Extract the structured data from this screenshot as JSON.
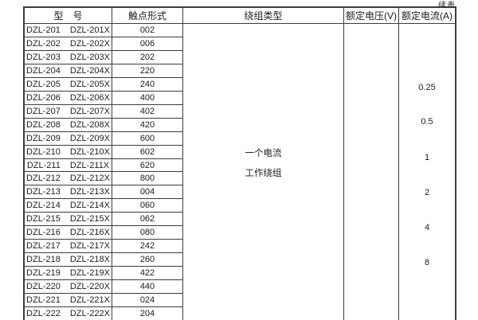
{
  "note": "续表",
  "table": {
    "headers": [
      "型　号",
      "触点形式",
      "绕组类型",
      "额定电压(V)",
      "额定电流(A)"
    ],
    "rows": [
      {
        "model": "DZL-201",
        "model_x": "DZL-201X",
        "contact_form": "002"
      },
      {
        "model": "DZL-202",
        "model_x": "DZL-202X",
        "contact_form": "006"
      },
      {
        "model": "DZL-203",
        "model_x": "DZL-203X",
        "contact_form": "202"
      },
      {
        "model": "DZL-204",
        "model_x": "DZL-204X",
        "contact_form": "220"
      },
      {
        "model": "DZL-205",
        "model_x": "DZL-205X",
        "contact_form": "240"
      },
      {
        "model": "DZL-206",
        "model_x": "DZL-206X",
        "contact_form": "400"
      },
      {
        "model": "DZL-207",
        "model_x": "DZL-207X",
        "contact_form": "402"
      },
      {
        "model": "DZL-208",
        "model_x": "DZL-208X",
        "contact_form": "420"
      },
      {
        "model": "DZL-209",
        "model_x": "DZL-209X",
        "contact_form": "600"
      },
      {
        "model": "DZL-210",
        "model_x": "DZL-210X",
        "contact_form": "602"
      },
      {
        "model": "DZL-211",
        "model_x": "DZL-211X",
        "contact_form": "620"
      },
      {
        "model": "DZL-212",
        "model_x": "DZL-212X",
        "contact_form": "800"
      },
      {
        "model": "DZL-213",
        "model_x": "DZL-213X",
        "contact_form": "004"
      },
      {
        "model": "DZL-214",
        "model_x": "DZL-214X",
        "contact_form": "060"
      },
      {
        "model": "DZL-215",
        "model_x": "DZL-215X",
        "contact_form": "062"
      },
      {
        "model": "DZL-216",
        "model_x": "DZL-216X",
        "contact_form": "080"
      },
      {
        "model": "DZL-217",
        "model_x": "DZL-217X",
        "contact_form": "242"
      },
      {
        "model": "DZL-218",
        "model_x": "DZL-218X",
        "contact_form": "260"
      },
      {
        "model": "DZL-219",
        "model_x": "DZL-219X",
        "contact_form": "422"
      },
      {
        "model": "DZL-220",
        "model_x": "DZL-220X",
        "contact_form": "440"
      },
      {
        "model": "DZL-221",
        "model_x": "DZL-221X",
        "contact_form": "024"
      },
      {
        "model": "DZL-222",
        "model_x": "DZL-222X",
        "contact_form": "204"
      }
    ],
    "winding_type_lines": [
      "一个电流",
      "工作绕组"
    ],
    "rated_voltage_values": [],
    "rated_current_values": [
      "0.25",
      "0.5",
      "1",
      "2",
      "4",
      "8"
    ]
  }
}
